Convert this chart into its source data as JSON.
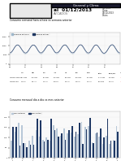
{
  "title": "General y Clima",
  "subtitle_date": "01/12/2013",
  "subtitle2": "AVICADOS",
  "right_labels": [
    "Corrales",
    "Clima",
    "01/12/2013",
    "Datos"
  ],
  "chart1_title": "Consumo semanal hora a hora vs semana anterior",
  "chart2_title": "Consumo mensual dia a dia vs mes anterior",
  "header_color": "#1a1a2e",
  "bar_color_current": "#1f3864",
  "bar_color_prev": "#b8c8d8",
  "line_color_current": "#1f3864",
  "line_color_prev": "#9eb8cc",
  "table_highlight_color": "#cc0000",
  "background_color": "#ffffff",
  "grid_color": "#dddddd"
}
